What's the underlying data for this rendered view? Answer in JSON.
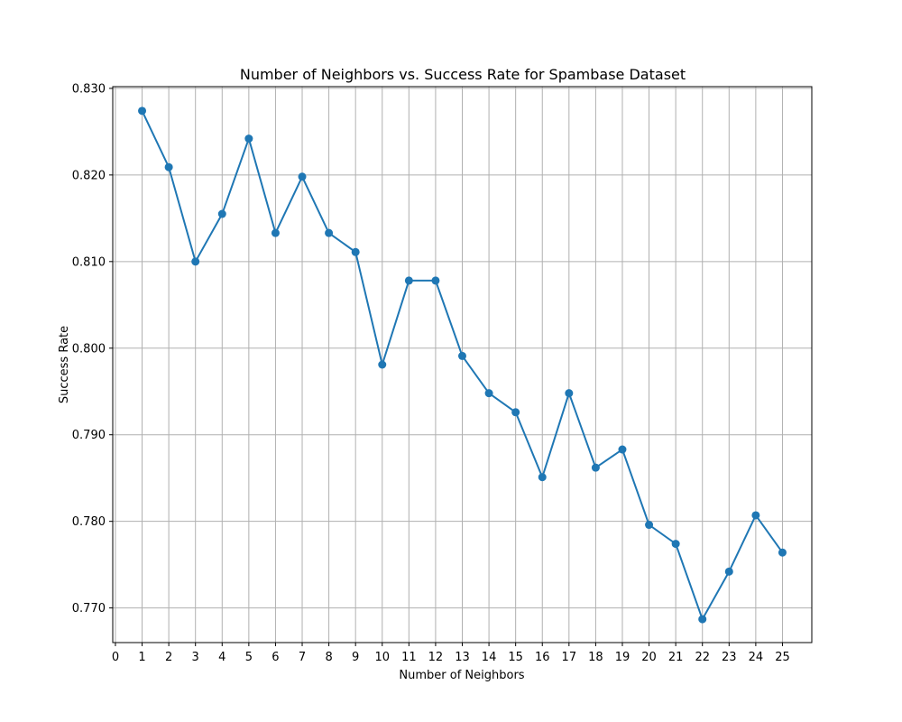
{
  "chart_data": {
    "type": "line",
    "title": "Number of Neighbors vs. Success Rate for Spambase Dataset",
    "xlabel": "Number of Neighbors",
    "ylabel": "Success Rate",
    "xlim": [
      -0.1,
      26.1
    ],
    "ylim": [
      0.766,
      0.8302
    ],
    "x_ticks": [
      0,
      1,
      2,
      3,
      4,
      5,
      6,
      7,
      8,
      9,
      10,
      11,
      12,
      13,
      14,
      15,
      16,
      17,
      18,
      19,
      20,
      21,
      22,
      23,
      24,
      25
    ],
    "x_tick_labels": [
      "0",
      "1",
      "2",
      "3",
      "4",
      "5",
      "6",
      "7",
      "8",
      "9",
      "10",
      "11",
      "12",
      "13",
      "14",
      "15",
      "16",
      "17",
      "18",
      "19",
      "20",
      "21",
      "22",
      "23",
      "24",
      "25"
    ],
    "y_ticks": [
      0.77,
      0.78,
      0.79,
      0.8,
      0.81,
      0.82,
      0.83
    ],
    "y_tick_labels": [
      "0.770",
      "0.780",
      "0.790",
      "0.800",
      "0.810",
      "0.820",
      "0.830"
    ],
    "grid": true,
    "line_color": "#1f77b4",
    "x": [
      1,
      2,
      3,
      4,
      5,
      6,
      7,
      8,
      9,
      10,
      11,
      12,
      13,
      14,
      15,
      16,
      17,
      18,
      19,
      20,
      21,
      22,
      23,
      24,
      25
    ],
    "y": [
      0.8274,
      0.8209,
      0.81,
      0.8155,
      0.8242,
      0.8133,
      0.8198,
      0.8133,
      0.8111,
      0.7981,
      0.8078,
      0.8078,
      0.7991,
      0.7948,
      0.7926,
      0.7851,
      0.7948,
      0.7862,
      0.7883,
      0.7796,
      0.7774,
      0.7687,
      0.7742,
      0.7807,
      0.7764
    ]
  }
}
